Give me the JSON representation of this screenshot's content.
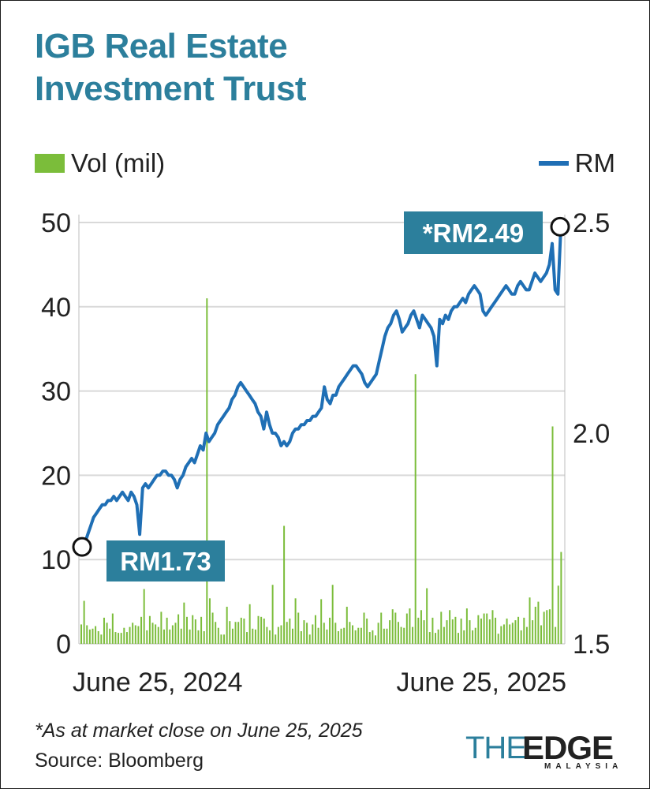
{
  "title_line1": "IGB Real Estate",
  "title_line2": "Investment Trust",
  "legend": {
    "volume": "Vol (mil)",
    "price": "RM"
  },
  "footnote": "*As at market close on June 25, 2025",
  "source": "Source: Bloomberg",
  "logo": {
    "the": "THE",
    "edge": "EDGE",
    "sub": "MALAYSIA"
  },
  "colors": {
    "title": "#2c7f9c",
    "price_line": "#1f6fb5",
    "volume_bar": "#7bbd3a",
    "label_box": "#2c7f9c",
    "grid": "#d9d9d9"
  },
  "chart_data": {
    "type": "line",
    "x_tick_labels": [
      "June 25, 2024",
      "June 25, 2025"
    ],
    "left_axis": {
      "label": "Vol (mil)",
      "ticks": [
        0,
        10,
        20,
        30,
        40,
        50
      ],
      "range": [
        0,
        50
      ]
    },
    "right_axis": {
      "label": "RM",
      "ticks": [
        "1.5",
        "2.0",
        "2.5"
      ],
      "range": [
        1.5,
        2.5
      ]
    },
    "grid": true,
    "annotations": [
      {
        "text": "RM1.73",
        "value": 1.73,
        "at": "start"
      },
      {
        "text": "*RM2.49",
        "value": 2.49,
        "at": "end"
      }
    ],
    "price_series": {
      "name": "RM",
      "values": [
        1.73,
        1.74,
        1.76,
        1.78,
        1.8,
        1.81,
        1.82,
        1.83,
        1.83,
        1.84,
        1.84,
        1.85,
        1.84,
        1.85,
        1.86,
        1.85,
        1.84,
        1.86,
        1.85,
        1.83,
        1.76,
        1.87,
        1.88,
        1.87,
        1.88,
        1.89,
        1.9,
        1.9,
        1.91,
        1.91,
        1.9,
        1.9,
        1.89,
        1.87,
        1.89,
        1.9,
        1.92,
        1.93,
        1.94,
        1.93,
        1.95,
        1.97,
        1.96,
        2.0,
        1.98,
        1.99,
        2.0,
        2.02,
        2.03,
        2.04,
        2.05,
        2.06,
        2.08,
        2.09,
        2.11,
        2.12,
        2.11,
        2.1,
        2.09,
        2.08,
        2.07,
        2.05,
        2.04,
        2.01,
        2.05,
        2.02,
        2.0,
        2.0,
        1.99,
        1.97,
        1.98,
        1.97,
        1.98,
        2.0,
        2.01,
        2.01,
        2.02,
        2.02,
        2.03,
        2.03,
        2.04,
        2.04,
        2.05,
        2.06,
        2.11,
        2.08,
        2.07,
        2.09,
        2.09,
        2.11,
        2.12,
        2.13,
        2.14,
        2.15,
        2.16,
        2.16,
        2.15,
        2.14,
        2.12,
        2.11,
        2.12,
        2.13,
        2.14,
        2.17,
        2.2,
        2.23,
        2.25,
        2.26,
        2.28,
        2.29,
        2.27,
        2.24,
        2.25,
        2.26,
        2.28,
        2.29,
        2.27,
        2.25,
        2.28,
        2.27,
        2.26,
        2.25,
        2.23,
        2.16,
        2.27,
        2.26,
        2.28,
        2.27,
        2.29,
        2.3,
        2.3,
        2.31,
        2.32,
        2.31,
        2.33,
        2.34,
        2.35,
        2.34,
        2.33,
        2.29,
        2.28,
        2.29,
        2.3,
        2.31,
        2.32,
        2.33,
        2.34,
        2.35,
        2.34,
        2.33,
        2.33,
        2.35,
        2.36,
        2.35,
        2.34,
        2.34,
        2.36,
        2.38,
        2.37,
        2.36,
        2.37,
        2.38,
        2.4,
        2.45,
        2.34,
        2.33,
        2.49
      ]
    },
    "volume_series": {
      "name": "Vol (mil)",
      "values": [
        2.3,
        5.1,
        2.2,
        1.7,
        1.8,
        2.1,
        1.5,
        1.1,
        3.1,
        2.5,
        1.8,
        3.6,
        1.4,
        1.3,
        1.3,
        1.9,
        1.4,
        2.0,
        2.5,
        2.2,
        2.1,
        3.2,
        6.5,
        1.6,
        3.3,
        2.5,
        2.3,
        2.0,
        3.8,
        1.7,
        3.1,
        1.7,
        2.2,
        2.5,
        3.5,
        1.8,
        4.9,
        3.2,
        1.7,
        3.4,
        2.9,
        1.6,
        3.2,
        1.5,
        41.0,
        5.4,
        3.7,
        2.6,
        1.9,
        1.1,
        1.1,
        4.4,
        2.7,
        1.8,
        2.6,
        2.6,
        3.1,
        3.0,
        1.4,
        4.7,
        1.8,
        1.7,
        3.3,
        3.2,
        3.0,
        2.0,
        1.6,
        7.0,
        1.1,
        2.0,
        2.2,
        14.0,
        2.6,
        3.0,
        1.8,
        5.4,
        3.7,
        1.5,
        2.8,
        2.5,
        1.1,
        2.3,
        3.4,
        1.9,
        5.3,
        2.5,
        1.7,
        3.1,
        7.0,
        2.5,
        1.5,
        1.8,
        1.9,
        4.4,
        2.6,
        2.2,
        1.6,
        1.9,
        1.9,
        3.7,
        3.0,
        1.4,
        1.6,
        1.0,
        2.5,
        3.7,
        1.8,
        1.8,
        2.8,
        4.1,
        3.7,
        2.6,
        2.0,
        1.9,
        3.6,
        4.2,
        2.0,
        32.0,
        3.1,
        4.0,
        2.8,
        6.6,
        1.4,
        3.1,
        1.3,
        1.7,
        3.8,
        2.0,
        2.8,
        4.0,
        2.9,
        3.2,
        1.3,
        3.0,
        1.6,
        4.2,
        2.8,
        1.6,
        1.9,
        3.4,
        3.0,
        3.6,
        3.6,
        2.9,
        4.0,
        3.1,
        1.2,
        2.1,
        2.3,
        3.0,
        2.3,
        2.5,
        2.8,
        3.2,
        1.6,
        3.1,
        2.0,
        5.5,
        2.8,
        4.4,
        5.0,
        2.2,
        3.8,
        4.0,
        4.1,
        25.8,
        2.0,
        6.9,
        10.9
      ]
    }
  }
}
